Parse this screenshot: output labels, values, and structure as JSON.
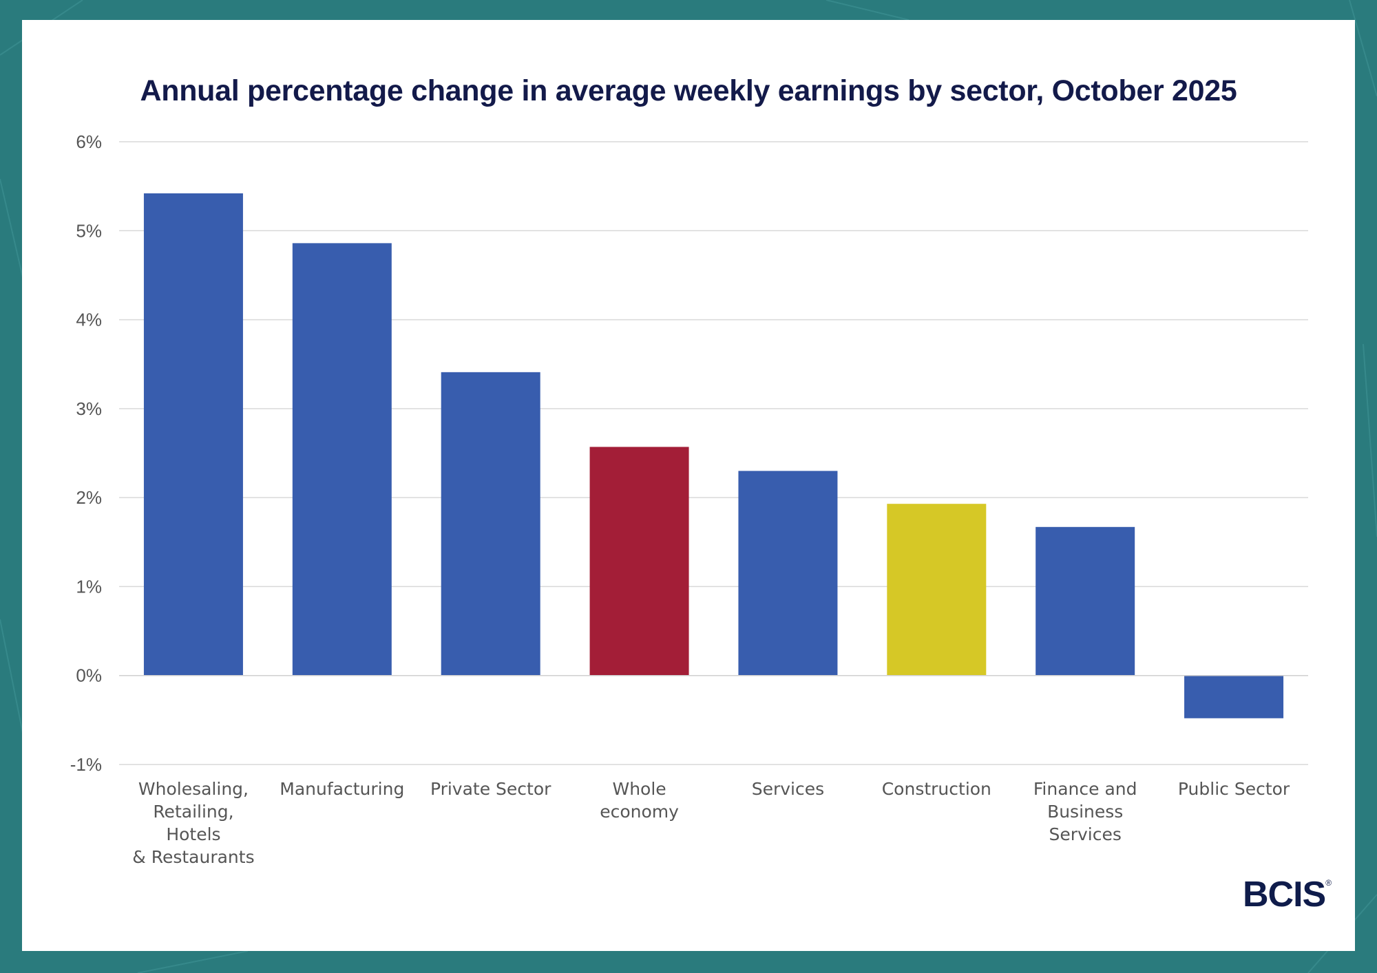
{
  "chart_data": {
    "type": "bar",
    "title": "Annual percentage change in average weekly earnings by sector, October 2025",
    "xlabel": "",
    "ylabel": "",
    "ylim": [
      -1,
      6
    ],
    "yticks": [
      -1,
      0,
      1,
      2,
      3,
      4,
      5,
      6
    ],
    "ytick_labels": [
      "-1%",
      "0%",
      "1%",
      "2%",
      "3%",
      "4%",
      "5%",
      "6%"
    ],
    "grid": true,
    "categories": [
      [
        "Wholesaling,",
        "Retailing,",
        "Hotels",
        "& Restaurants"
      ],
      [
        "Manufacturing"
      ],
      [
        "Private Sector"
      ],
      [
        "Whole",
        "economy"
      ],
      [
        "Services"
      ],
      [
        "Construction"
      ],
      [
        "Finance and",
        "Business",
        "Services"
      ],
      [
        "Public Sector"
      ]
    ],
    "values": [
      5.42,
      4.86,
      3.41,
      2.57,
      2.3,
      1.93,
      1.67,
      -0.48
    ],
    "bar_colors": [
      "#385dae",
      "#385dae",
      "#385dae",
      "#a31e37",
      "#385dae",
      "#d6c826",
      "#385dae",
      "#385dae"
    ]
  },
  "colors": {
    "background": "#2a7b7d",
    "card": "#ffffff",
    "title": "#131a4a",
    "grid": "#d9d9d9",
    "tick_text": "#555555",
    "logo": "#0f1c4b"
  },
  "logo": {
    "text": "BCIS",
    "mark": "®"
  }
}
